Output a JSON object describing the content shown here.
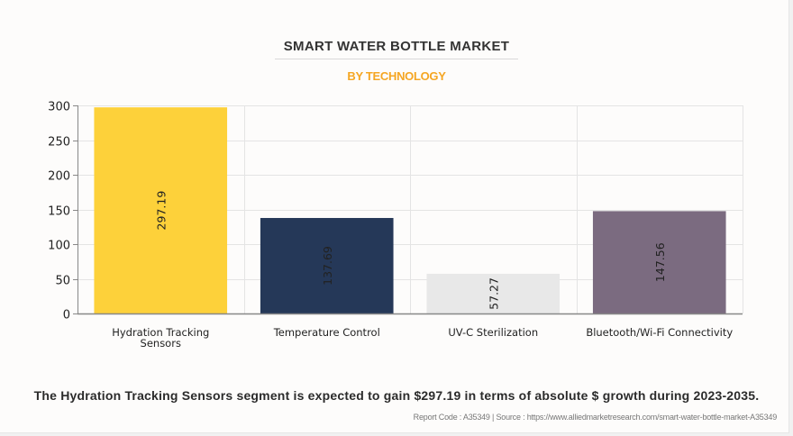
{
  "header": {
    "title": "SMART WATER BOTTLE MARKET",
    "subtitle": "BY TECHNOLOGY"
  },
  "colors": {
    "title": "#333333",
    "subtitle": "#f5a623",
    "grid": "#e4e4e4",
    "axis": "#888888"
  },
  "chart_data": {
    "type": "bar",
    "title": "SMART WATER BOTTLE MARKET",
    "subtitle": "BY TECHNOLOGY",
    "xlabel": "",
    "ylabel": "",
    "ylim": [
      0,
      300
    ],
    "yticks": [
      0,
      50,
      100,
      150,
      200,
      250,
      300
    ],
    "grid": true,
    "legend": "none",
    "categories": [
      "Hydration Tracking Sensors",
      "Temperature Control",
      "UV-C Sterilization",
      "Bluetooth/Wi-Fi Connectivity"
    ],
    "category_lines": [
      [
        "Hydration Tracking",
        "Sensors"
      ],
      [
        "Temperature Control"
      ],
      [
        "UV-C Sterilization"
      ],
      [
        "Bluetooth/Wi-Fi Connectivity"
      ]
    ],
    "values": [
      297.19,
      137.69,
      57.27,
      147.56
    ],
    "data_labels": [
      "297.19",
      "137.69",
      "57.27",
      "147.56"
    ],
    "bar_colors": [
      "#fdd13a",
      "#253858",
      "#e8e8e8",
      "#7b6b80"
    ]
  },
  "footer": {
    "headline": "The Hydration Tracking Sensors segment is expected to gain $297.19 in terms of absolute $ growth during 2023-2035.",
    "source": "Report Code : A35349  |  Source : https://www.alliedmarketresearch.com/smart-water-bottle-market-A35349"
  }
}
